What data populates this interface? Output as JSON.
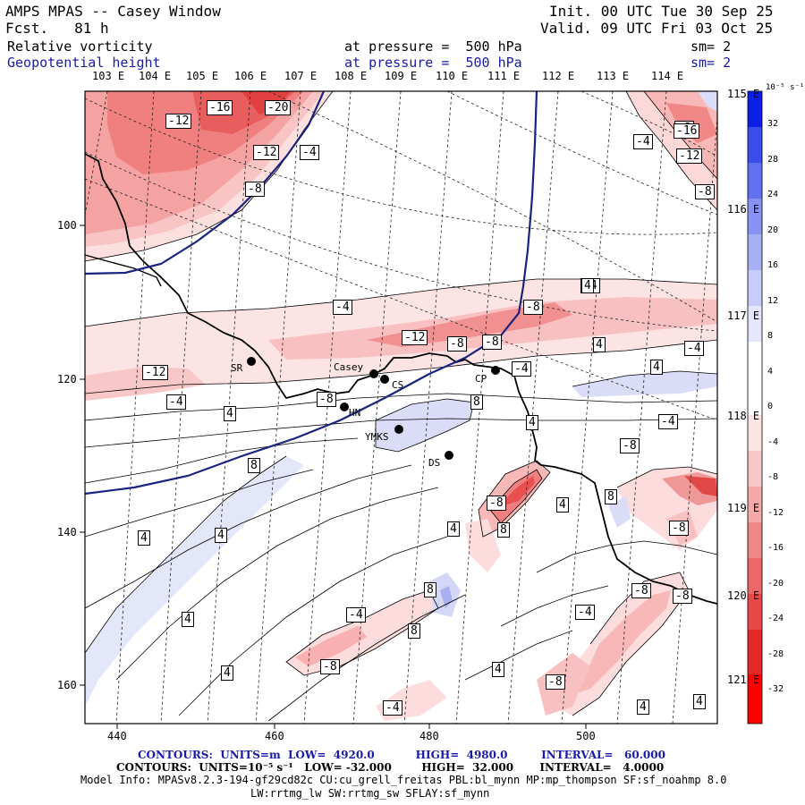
{
  "header": {
    "model": "AMPS MPAS -- Casey Window",
    "forecast": "Fcst.   81 h",
    "init": "Init. 00 UTC Tue 30 Sep 25",
    "valid": "Valid. 09 UTC Fri 03 Oct 25",
    "field1_name": "Relative vorticity",
    "field1_pressure": "at pressure =  500 hPa",
    "field1_sm": "sm= 2",
    "field2_name": "Geopotential height",
    "field2_pressure": "at pressure =  500 hPa",
    "field2_sm": "sm= 2"
  },
  "map": {
    "top_longitude_labels": [
      "103 E",
      "104 E",
      "105 E",
      "106 E",
      "107 E",
      "108 E",
      "109 E",
      "110 E",
      "111 E",
      "112 E",
      "113 E",
      "114 E"
    ],
    "right_longitude_labels": [
      "115 E",
      "116 E",
      "117 E",
      "118 E",
      "119 E",
      "120 E",
      "121 E"
    ],
    "x_ticks": [
      "440",
      "460",
      "480",
      "500"
    ],
    "y_ticks": [
      "100",
      "120",
      "140",
      "160"
    ],
    "stations": [
      {
        "name": "SR"
      },
      {
        "name": "Casey"
      },
      {
        "name": "CS"
      },
      {
        "name": "CP"
      },
      {
        "name": "HN"
      },
      {
        "name": "YMKS"
      },
      {
        "name": "DS"
      }
    ],
    "contour_labels": [
      "-12",
      "-16",
      "-20",
      "-12",
      "-4",
      "-8",
      "-4",
      "-12",
      "-8",
      "-8",
      "-12",
      "-8",
      "-4",
      "-4",
      "-8",
      "-4",
      "4",
      "4",
      "4",
      "8",
      "8",
      "4",
      "-4",
      "-8",
      "4",
      "-8",
      "4",
      "8",
      "-8",
      "4",
      "-8",
      "8",
      "4",
      "4",
      "-8",
      "4",
      "8",
      "-4",
      "-8",
      "-4",
      "-4",
      "-8",
      "4",
      "8",
      "-4",
      "4",
      "4",
      "-8",
      "4",
      "-16",
      "-12",
      "-4",
      "-8"
    ]
  },
  "colorbar": {
    "units": "10⁻⁵ s⁻¹",
    "labels": [
      "32",
      "28",
      "24",
      "20",
      "16",
      "12",
      "8",
      "4",
      "0",
      "-4",
      "-8",
      "-12",
      "-16",
      "-20",
      "-24",
      "-28",
      "-32"
    ]
  },
  "footer": {
    "contours1": "CONTOURS:  UNITS=m  LOW=  4920.0           HIGH=  4980.0         INTERVAL=   60.000",
    "contours2": "CONTOURS:  UNITS=10⁻⁵ s⁻¹   LOW= -32.000        HIGH=  32.000       INTERVAL=   4.0000",
    "model_info": "Model Info: MPASv8.2.3-194-gf29cd82c CU:cu_grell_freitas PBL:bl_mynn MP:mp_thompson SF:sf_noahmp 8.0",
    "model_info2": "LW:rrtmg_lw SW:rrtmg_sw SFLAY:sf_mynn"
  },
  "colors": {
    "red_strong": "#e03030",
    "red_mid": "#f07070",
    "red_light": "#f8b8b8",
    "red_faint": "#fce0e0",
    "blue_light": "#d8dcf8",
    "blue_mid": "#a8b0f0",
    "height_contour": "#1a237e"
  }
}
